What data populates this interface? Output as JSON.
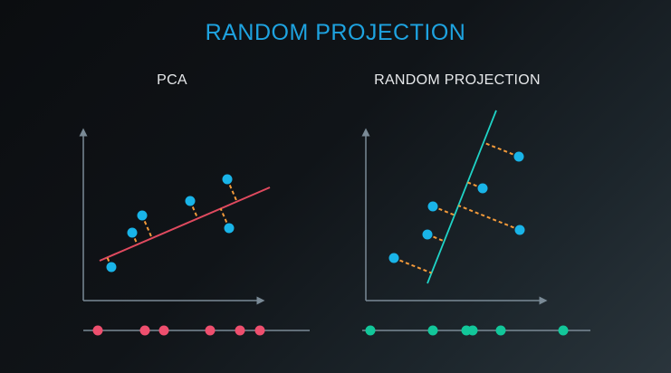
{
  "title": "RANDOM PROJECTION",
  "panels": {
    "left_title": "PCA",
    "right_title": "RANDOM PROJECTION"
  },
  "colors": {
    "title": "#1ea3e0",
    "panel_title": "#e6e8ea",
    "axis": "#7a8a96",
    "points": "#19b4e8",
    "pca_line": "#e04a5f",
    "rp_line": "#1fd3c6",
    "dash": "#f39a3a",
    "pca_projected": "#ee4f6e",
    "rp_projected": "#12c79a"
  },
  "pca_points": [
    [
      123,
      295
    ],
    [
      146,
      257
    ],
    [
      157,
      238
    ],
    [
      210,
      222
    ],
    [
      251,
      198
    ],
    [
      253,
      252
    ]
  ],
  "rp_points": [
    [
      435,
      285
    ],
    [
      472,
      259
    ],
    [
      478,
      228
    ],
    [
      533,
      208
    ],
    [
      573,
      173
    ],
    [
      574,
      254
    ]
  ],
  "pca_line": [
    [
      110,
      288
    ],
    [
      298,
      207
    ]
  ],
  "rp_line": [
    [
      472,
      313
    ],
    [
      548,
      122
    ]
  ],
  "pca_projected": [
    108,
    160,
    181,
    232,
    265,
    287
  ],
  "rp_projected": [
    409,
    478,
    515,
    522,
    553,
    622
  ]
}
